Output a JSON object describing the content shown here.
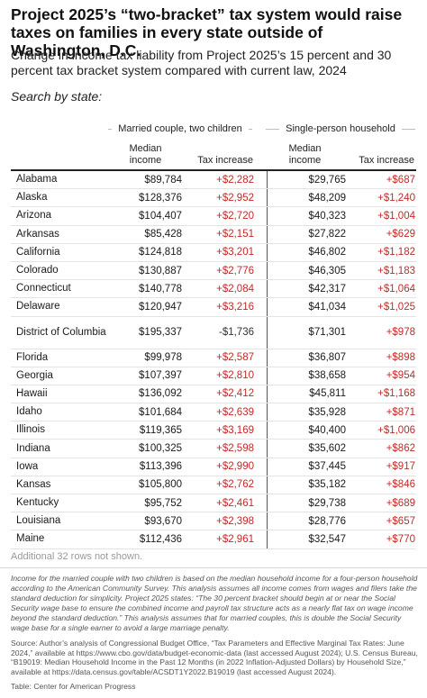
{
  "title": "Project 2025’s “two-bracket” tax system would raise taxes on families in every state outside of Washington, D.C.",
  "subtitle": "Change in income tax liability from Project 2025’s 15 percent and 30 percent tax bracket system compared with current law, 2024",
  "search_label": "Search by state:",
  "groups": {
    "married": "Married couple, two children",
    "single": "Single-person household"
  },
  "columns": {
    "married_income": "Median income",
    "married_tax": "Tax increase",
    "single_income": "Median income",
    "single_tax": "Tax increase"
  },
  "rows": [
    {
      "state": "Alabama",
      "m_income": "$89,784",
      "m_tax": "+$2,282",
      "s_income": "$29,765",
      "s_tax": "+$687"
    },
    {
      "state": "Alaska",
      "m_income": "$128,376",
      "m_tax": "+$2,952",
      "s_income": "$48,209",
      "s_tax": "+$1,240"
    },
    {
      "state": "Arizona",
      "m_income": "$104,407",
      "m_tax": "+$2,720",
      "s_income": "$40,323",
      "s_tax": "+$1,004"
    },
    {
      "state": "Arkansas",
      "m_income": "$85,428",
      "m_tax": "+$2,151",
      "s_income": "$27,822",
      "s_tax": "+$629"
    },
    {
      "state": "California",
      "m_income": "$124,818",
      "m_tax": "+$3,201",
      "s_income": "$46,802",
      "s_tax": "+$1,182"
    },
    {
      "state": "Colorado",
      "m_income": "$130,887",
      "m_tax": "+$2,776",
      "s_income": "$46,305",
      "s_tax": "+$1,183"
    },
    {
      "state": "Connecticut",
      "m_income": "$140,778",
      "m_tax": "+$2,084",
      "s_income": "$42,317",
      "s_tax": "+$1,064"
    },
    {
      "state": "Delaware",
      "m_income": "$120,947",
      "m_tax": "+$3,216",
      "s_income": "$41,034",
      "s_tax": "+$1,025"
    },
    {
      "state": "District of Columbia",
      "m_income": "$195,337",
      "m_tax": "-$1,736",
      "s_income": "$71,301",
      "s_tax": "+$978"
    },
    {
      "state": "Florida",
      "m_income": "$99,978",
      "m_tax": "+$2,587",
      "s_income": "$36,807",
      "s_tax": "+$898"
    },
    {
      "state": "Georgia",
      "m_income": "$107,397",
      "m_tax": "+$2,810",
      "s_income": "$38,658",
      "s_tax": "+$954"
    },
    {
      "state": "Hawaii",
      "m_income": "$136,092",
      "m_tax": "+$2,412",
      "s_income": "$45,811",
      "s_tax": "+$1,168"
    },
    {
      "state": "Idaho",
      "m_income": "$101,684",
      "m_tax": "+$2,639",
      "s_income": "$35,928",
      "s_tax": "+$871"
    },
    {
      "state": "Illinois",
      "m_income": "$119,365",
      "m_tax": "+$3,169",
      "s_income": "$40,400",
      "s_tax": "+$1,006"
    },
    {
      "state": "Indiana",
      "m_income": "$100,325",
      "m_tax": "+$2,598",
      "s_income": "$35,602",
      "s_tax": "+$862"
    },
    {
      "state": "Iowa",
      "m_income": "$113,396",
      "m_tax": "+$2,990",
      "s_income": "$37,445",
      "s_tax": "+$917"
    },
    {
      "state": "Kansas",
      "m_income": "$105,800",
      "m_tax": "+$2,762",
      "s_income": "$35,182",
      "s_tax": "+$846"
    },
    {
      "state": "Kentucky",
      "m_income": "$95,752",
      "m_tax": "+$2,461",
      "s_income": "$29,738",
      "s_tax": "+$689"
    },
    {
      "state": "Louisiana",
      "m_income": "$93,670",
      "m_tax": "+$2,398",
      "s_income": "$28,776",
      "s_tax": "+$657"
    },
    {
      "state": "Maine",
      "m_income": "$112,436",
      "m_tax": "+$2,961",
      "s_income": "$32,547",
      "s_tax": "+$770"
    }
  ],
  "more_rows": "Additional 32 rows not shown.",
  "note": "Income for the married couple with two children is based on the median household income for a four-person household according to the American Community Survey. This analysis assumes all income comes from wages and filers take the standard deduction for simplicity. Project 2025 states: “The 30 percent bracket should begin at or near the Social Security wage base to ensure the combined income and payroll tax structure acts as a nearly flat tax on wage income beyond the standard deduction.” This analysis assumes that for married couples, this is double the Social Security wage base for a single earner to avoid a large marriage penalty.",
  "source": "Source: Author’s analysis of Congressional Budget Office, “Tax Parameters and Effective Marginal Tax Rates: June 2024,” available at https://www.cbo.gov/data/budget-economic-data (last accessed August 2024); U.S. Census Bureau, “B19019: Median Household Income in the Past 12 Months (in 2022 Inflation-Adjusted Dollars) by Household Size,” available at https://data.census.gov/table/ACSDT1Y2022.B19019 (last accessed August 2024).",
  "credit": "Table: Center for American Progress",
  "colors": {
    "increase": "#c62828",
    "decrease": "#333333"
  }
}
